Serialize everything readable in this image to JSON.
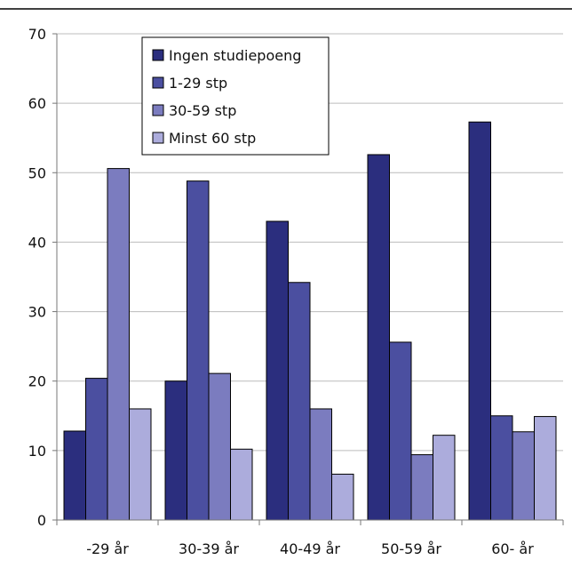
{
  "chart_data": {
    "type": "bar",
    "title": "",
    "xlabel": "",
    "ylabel": "",
    "ylim": [
      0,
      70
    ],
    "yticks": [
      0,
      10,
      20,
      30,
      40,
      50,
      60,
      70
    ],
    "grid": true,
    "legend_position": "top-center",
    "categories": [
      "-29 år",
      "30-39 år",
      "40-49 år",
      "50-59 år",
      "60- år"
    ],
    "series": [
      {
        "name": "Ingen studiepoeng",
        "color": "#2b2e7e",
        "values": [
          12.8,
          20.0,
          43.0,
          52.6,
          57.3
        ]
      },
      {
        "name": "1-29 stp",
        "color": "#4b4fa0",
        "values": [
          20.4,
          48.8,
          34.2,
          25.6,
          15.0
        ]
      },
      {
        "name": "30-59 stp",
        "color": "#7b7cbf",
        "values": [
          50.6,
          21.1,
          16.0,
          9.4,
          12.7
        ]
      },
      {
        "name": "Minst 60 stp",
        "color": "#acacdc",
        "values": [
          16.0,
          10.2,
          6.6,
          12.2,
          14.9
        ]
      }
    ]
  }
}
